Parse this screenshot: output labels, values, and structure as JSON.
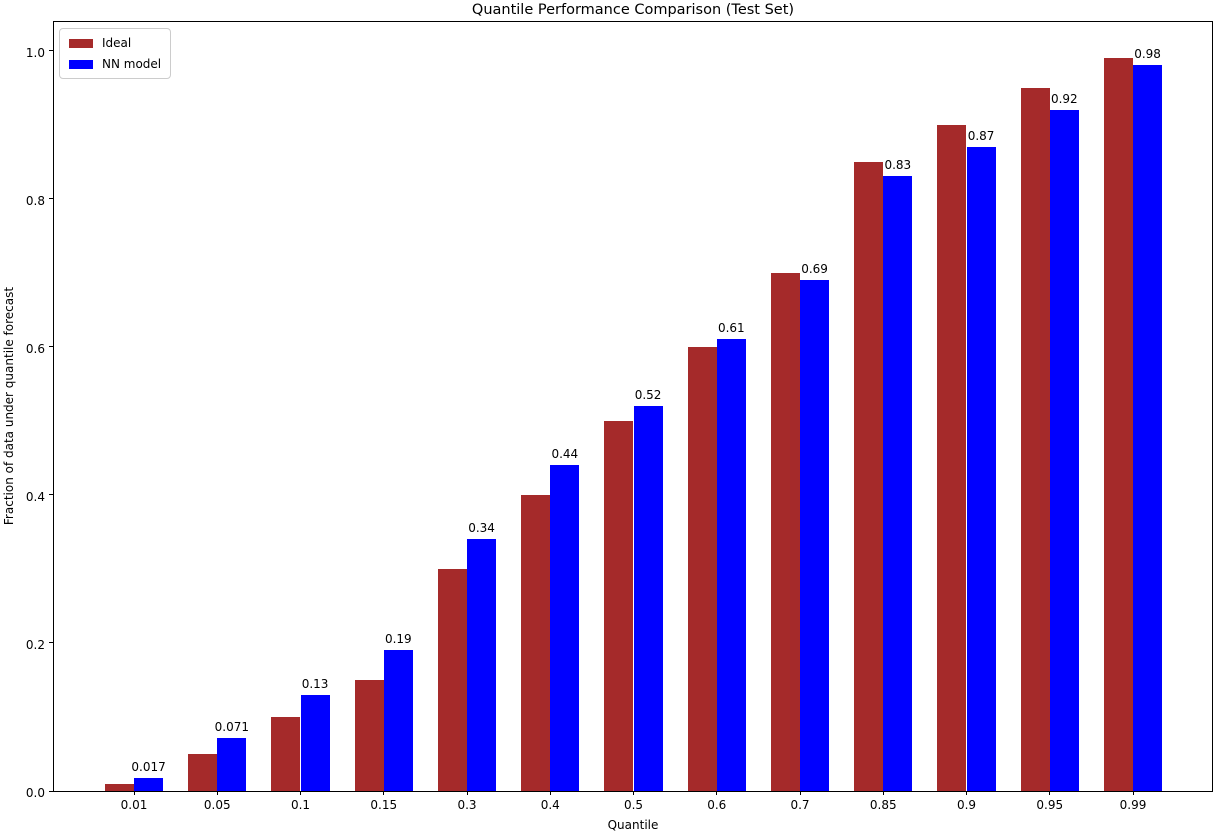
{
  "chart_data": {
    "type": "bar",
    "title": "Quantile Performance Comparison (Test Set)",
    "xlabel": "Quantile",
    "ylabel": "Fraction of data under quantile forecast",
    "categories": [
      "0.01",
      "0.05",
      "0.1",
      "0.15",
      "0.3",
      "0.4",
      "0.5",
      "0.6",
      "0.7",
      "0.85",
      "0.9",
      "0.95",
      "0.99"
    ],
    "series": [
      {
        "name": "Ideal",
        "color": "#A52A2A",
        "values": [
          0.01,
          0.05,
          0.1,
          0.15,
          0.3,
          0.4,
          0.5,
          0.6,
          0.7,
          0.85,
          0.9,
          0.95,
          0.99
        ]
      },
      {
        "name": "NN model",
        "color": "#0000FF",
        "values": [
          0.017,
          0.071,
          0.13,
          0.19,
          0.34,
          0.44,
          0.52,
          0.61,
          0.69,
          0.83,
          0.87,
          0.92,
          0.98
        ],
        "bar_labels": [
          "0.017",
          "0.071",
          "0.13",
          "0.19",
          "0.34",
          "0.44",
          "0.52",
          "0.61",
          "0.69",
          "0.83",
          "0.87",
          "0.92",
          "0.98"
        ]
      }
    ],
    "yticks": [
      "0.0",
      "0.2",
      "0.4",
      "0.6",
      "0.8",
      "1.0"
    ],
    "ylim": [
      0,
      1.042
    ],
    "grid": false,
    "legend_position": "upper left"
  }
}
